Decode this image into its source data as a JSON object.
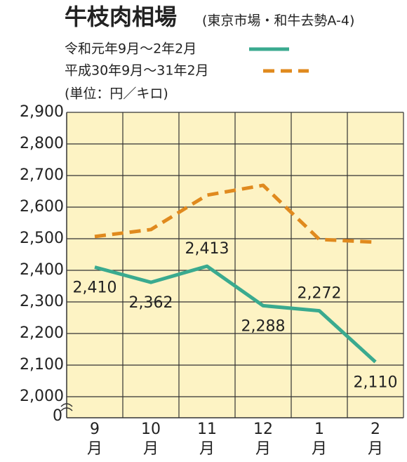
{
  "chart_data": {
    "type": "line",
    "title": "牛枝肉相場",
    "subtitle": "(東京市場・和牛去勢A-4)",
    "unit_note": "(単位：円／キロ)",
    "categories": [
      "9",
      "10",
      "11",
      "12",
      "1",
      "2"
    ],
    "category_units": [
      "月",
      "月",
      "月",
      "月",
      "月",
      "月"
    ],
    "series": [
      {
        "name": "令和元年9月～2年2月",
        "color": "#3aaa8f",
        "dash": false,
        "values": [
          2410,
          2362,
          2413,
          2288,
          2272,
          2110
        ],
        "value_labels": [
          "2,410",
          "2,362",
          "2,413",
          "2,288",
          "2,272",
          "2,110"
        ],
        "value_label_positions": [
          "below",
          "below",
          "above",
          "below",
          "above",
          "below"
        ]
      },
      {
        "name": "平成30年9月～31年2月",
        "color": "#e08a1e",
        "dash": true,
        "values": [
          2507,
          2529,
          2638,
          2669,
          2498,
          2489
        ]
      }
    ],
    "ylim": [
      2000,
      2900
    ],
    "yticks": [
      {
        "value": 2000,
        "label": "2,000"
      },
      {
        "value": 2100,
        "label": "2,100"
      },
      {
        "value": 2200,
        "label": "2,200"
      },
      {
        "value": 2300,
        "label": "2,300"
      },
      {
        "value": 2400,
        "label": "2,400"
      },
      {
        "value": 2500,
        "label": "2,500"
      },
      {
        "value": 2600,
        "label": "2,600"
      },
      {
        "value": 2700,
        "label": "2,700"
      },
      {
        "value": 2800,
        "label": "2,800"
      },
      {
        "value": 2900,
        "label": "2,900"
      }
    ],
    "y_origin_label": "0",
    "grid": true
  }
}
